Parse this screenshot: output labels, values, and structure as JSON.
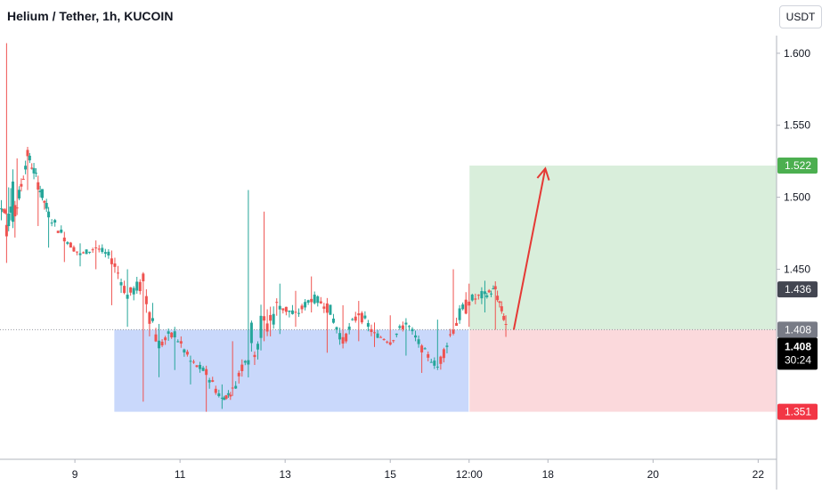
{
  "header": {
    "title": "Helium / Tether, 1h, KUCOIN",
    "currency_button": "USDT"
  },
  "colors": {
    "up": "#26a69a",
    "down": "#ef5350",
    "target_zone": "#d9eedb",
    "stop_zone": "#fbd9dc",
    "support_zone": "#c9d8fb",
    "arrow": "#e53935",
    "label_target": "#4caf50",
    "label_stop": "#f23645",
    "label_gray": "#787b86",
    "label_dark": "#434651",
    "label_black": "#000000"
  },
  "chart_data": {
    "type": "candlestick",
    "ylim": [
      1.318,
      1.637
    ],
    "y_ticks": [
      1.6,
      1.55,
      1.5,
      1.45
    ],
    "x_tick_labels": [
      {
        "label": "9",
        "day": 9
      },
      {
        "label": "11",
        "day": 11
      },
      {
        "label": "13",
        "day": 13
      },
      {
        "label": "15",
        "day": 15
      },
      {
        "label": "12:00",
        "day": 16.5
      },
      {
        "label": "18",
        "day": 18
      },
      {
        "label": "20",
        "day": 20
      },
      {
        "label": "22",
        "day": 22
      }
    ],
    "x_range_days": [
      7.575,
      22.35
    ],
    "candles_approx": [
      {
        "day": 7.6,
        "open": 1.492,
        "high": 1.498,
        "low": 1.484,
        "close": 1.49
      },
      {
        "day": 7.7,
        "open": 1.49,
        "high": 1.607,
        "low": 1.471,
        "close": 1.494
      },
      {
        "day": 7.9,
        "open": 1.494,
        "high": 1.527,
        "low": 1.49,
        "close": 1.52
      },
      {
        "day": 8.1,
        "open": 1.53,
        "high": 1.535,
        "low": 1.505,
        "close": 1.51
      },
      {
        "day": 8.3,
        "open": 1.51,
        "high": 1.515,
        "low": 1.48,
        "close": 1.488
      },
      {
        "day": 8.5,
        "open": 1.488,
        "high": 1.49,
        "low": 1.465,
        "close": 1.472
      },
      {
        "day": 8.8,
        "open": 1.472,
        "high": 1.476,
        "low": 1.455,
        "close": 1.46
      },
      {
        "day": 9.1,
        "open": 1.46,
        "high": 1.468,
        "low": 1.452,
        "close": 1.465
      },
      {
        "day": 9.4,
        "open": 1.465,
        "high": 1.47,
        "low": 1.45,
        "close": 1.458
      },
      {
        "day": 9.7,
        "open": 1.458,
        "high": 1.463,
        "low": 1.425,
        "close": 1.432
      },
      {
        "day": 10.0,
        "open": 1.432,
        "high": 1.45,
        "low": 1.41,
        "close": 1.44
      },
      {
        "day": 10.3,
        "open": 1.44,
        "high": 1.442,
        "low": 1.358,
        "close": 1.398
      },
      {
        "day": 10.6,
        "open": 1.398,
        "high": 1.412,
        "low": 1.375,
        "close": 1.405
      },
      {
        "day": 10.9,
        "open": 1.405,
        "high": 1.41,
        "low": 1.38,
        "close": 1.386
      },
      {
        "day": 11.2,
        "open": 1.386,
        "high": 1.39,
        "low": 1.37,
        "close": 1.378
      },
      {
        "day": 11.5,
        "open": 1.378,
        "high": 1.383,
        "low": 1.351,
        "close": 1.36
      },
      {
        "day": 11.8,
        "open": 1.36,
        "high": 1.37,
        "low": 1.353,
        "close": 1.365
      },
      {
        "day": 12.0,
        "open": 1.365,
        "high": 1.4,
        "low": 1.362,
        "close": 1.395
      },
      {
        "day": 12.3,
        "open": 1.395,
        "high": 1.505,
        "low": 1.385,
        "close": 1.41
      },
      {
        "day": 12.6,
        "open": 1.41,
        "high": 1.49,
        "low": 1.4,
        "close": 1.425
      },
      {
        "day": 12.9,
        "open": 1.425,
        "high": 1.44,
        "low": 1.405,
        "close": 1.418
      },
      {
        "day": 13.2,
        "open": 1.418,
        "high": 1.435,
        "low": 1.41,
        "close": 1.43
      },
      {
        "day": 13.5,
        "open": 1.43,
        "high": 1.445,
        "low": 1.42,
        "close": 1.425
      },
      {
        "day": 13.8,
        "open": 1.425,
        "high": 1.43,
        "low": 1.392,
        "close": 1.4
      },
      {
        "day": 14.1,
        "open": 1.4,
        "high": 1.425,
        "low": 1.395,
        "close": 1.42
      },
      {
        "day": 14.4,
        "open": 1.42,
        "high": 1.428,
        "low": 1.4,
        "close": 1.405
      },
      {
        "day": 14.7,
        "open": 1.405,
        "high": 1.413,
        "low": 1.396,
        "close": 1.4
      },
      {
        "day": 15.0,
        "open": 1.4,
        "high": 1.418,
        "low": 1.397,
        "close": 1.413
      },
      {
        "day": 15.3,
        "open": 1.413,
        "high": 1.416,
        "low": 1.39,
        "close": 1.395
      },
      {
        "day": 15.6,
        "open": 1.395,
        "high": 1.398,
        "low": 1.378,
        "close": 1.382
      },
      {
        "day": 15.9,
        "open": 1.382,
        "high": 1.415,
        "low": 1.38,
        "close": 1.41
      },
      {
        "day": 16.2,
        "open": 1.41,
        "high": 1.45,
        "low": 1.405,
        "close": 1.428
      },
      {
        "day": 16.5,
        "open": 1.428,
        "high": 1.44,
        "low": 1.41,
        "close": 1.432
      },
      {
        "day": 16.8,
        "open": 1.432,
        "high": 1.442,
        "low": 1.42,
        "close": 1.436
      },
      {
        "day": 17.0,
        "open": 1.436,
        "high": 1.438,
        "low": 1.408,
        "close": 1.412
      },
      {
        "day": 17.2,
        "open": 1.412,
        "high": 1.418,
        "low": 1.403,
        "close": 1.408
      }
    ],
    "zones": {
      "target": {
        "start_day": 16.5,
        "end_day": 22.35,
        "low": 1.408,
        "high": 1.522
      },
      "stop": {
        "start_day": 16.5,
        "end_day": 22.35,
        "low": 1.351,
        "high": 1.408
      },
      "support": {
        "start_day": 9.75,
        "end_day": 16.5,
        "low": 1.351,
        "high": 1.408
      }
    },
    "current_price": 1.408,
    "dotted_price_line": 1.408,
    "projection_arrow": {
      "from": {
        "day": 17.35,
        "price": 1.408
      },
      "to": {
        "day": 17.95,
        "price": 1.52
      }
    },
    "price_labels": [
      {
        "value": "1.522",
        "price": 1.522,
        "color": "label_target"
      },
      {
        "value": "1.436",
        "price": 1.436,
        "color": "label_dark"
      },
      {
        "value": "1.408",
        "price": 1.408,
        "color": "label_gray"
      },
      {
        "value": "1.351",
        "price": 1.351,
        "color": "label_stop"
      }
    ],
    "current_label": {
      "price_text": "1.408",
      "countdown": "30:24",
      "color": "label_black"
    }
  }
}
